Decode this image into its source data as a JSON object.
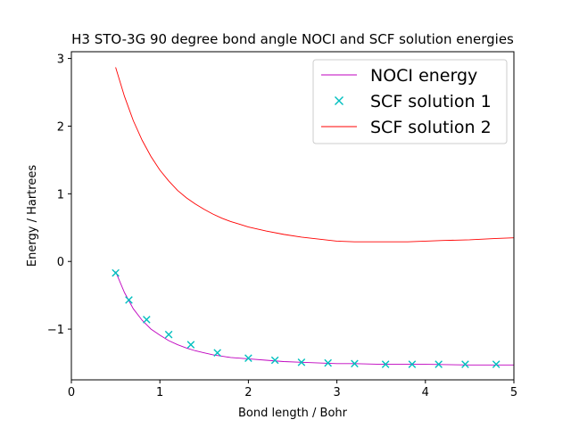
{
  "chart_data": {
    "type": "line",
    "title": "H3 STO-3G 90 degree bond angle NOCI and SCF solution energies",
    "xlabel": "Bond length / Bohr",
    "ylabel": "Energy / Hartrees",
    "xlim": [
      0,
      5
    ],
    "ylim": [
      -1.75,
      3.1
    ],
    "xticks": [
      0,
      1,
      2,
      3,
      4,
      5
    ],
    "yticks": [
      -1,
      0,
      1,
      2,
      3
    ],
    "legend_position": "top-right",
    "grid": false,
    "series": [
      {
        "name": "NOCI energy",
        "style": "line",
        "color": "#bf00bf",
        "x": [
          0.5,
          0.6,
          0.7,
          0.8,
          0.9,
          1.0,
          1.1,
          1.2,
          1.3,
          1.4,
          1.5,
          1.6,
          1.7,
          1.8,
          1.9,
          2.0,
          2.2,
          2.4,
          2.6,
          2.8,
          3.0,
          3.2,
          3.5,
          3.8,
          4.0,
          4.5,
          5.0
        ],
        "y": [
          -0.15,
          -0.46,
          -0.7,
          -0.87,
          -1.0,
          -1.09,
          -1.17,
          -1.23,
          -1.28,
          -1.32,
          -1.35,
          -1.38,
          -1.4,
          -1.42,
          -1.43,
          -1.44,
          -1.46,
          -1.48,
          -1.49,
          -1.5,
          -1.51,
          -1.51,
          -1.52,
          -1.52,
          -1.52,
          -1.53,
          -1.53
        ]
      },
      {
        "name": "SCF solution 1",
        "style": "marker",
        "color": "#00bfbf",
        "x": [
          0.5,
          0.65,
          0.85,
          1.1,
          1.35,
          1.65,
          2.0,
          2.3,
          2.6,
          2.9,
          3.2,
          3.55,
          3.85,
          4.15,
          4.45,
          4.8
        ],
        "y": [
          -0.17,
          -0.57,
          -0.86,
          -1.08,
          -1.23,
          -1.35,
          -1.43,
          -1.46,
          -1.49,
          -1.5,
          -1.51,
          -1.52,
          -1.52,
          -1.52,
          -1.52,
          -1.52
        ]
      },
      {
        "name": "SCF solution 2",
        "style": "line",
        "color": "#ff0000",
        "x": [
          0.5,
          0.6,
          0.7,
          0.8,
          0.9,
          1.0,
          1.1,
          1.2,
          1.3,
          1.4,
          1.5,
          1.6,
          1.7,
          1.8,
          1.9,
          2.0,
          2.2,
          2.4,
          2.6,
          2.8,
          3.0,
          3.2,
          3.5,
          3.8,
          4.0,
          4.2,
          4.5,
          4.8,
          5.0
        ],
        "y": [
          2.87,
          2.44,
          2.08,
          1.79,
          1.55,
          1.35,
          1.19,
          1.05,
          0.94,
          0.85,
          0.77,
          0.7,
          0.64,
          0.59,
          0.55,
          0.51,
          0.45,
          0.4,
          0.36,
          0.33,
          0.3,
          0.29,
          0.29,
          0.29,
          0.3,
          0.31,
          0.32,
          0.34,
          0.35
        ]
      }
    ]
  }
}
